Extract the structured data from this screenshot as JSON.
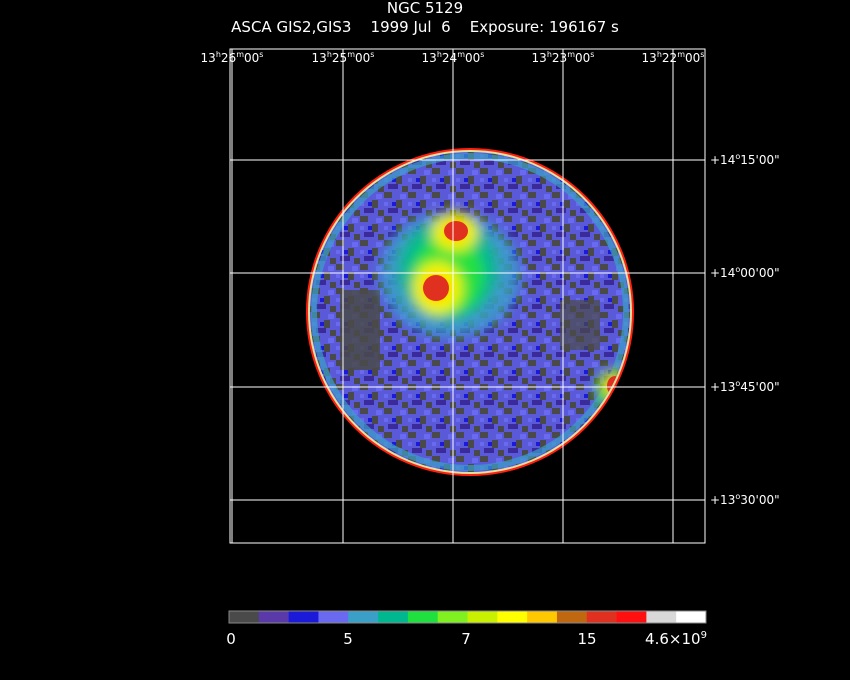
{
  "header": {
    "object_name": "NGC 5129",
    "subtitle": "ASCA GIS2,GIS3    1999 Jul  6    Exposure: 196167 s"
  },
  "ra_ticks": [
    {
      "h": "13",
      "m": "26",
      "s": "00"
    },
    {
      "h": "13",
      "m": "25",
      "s": "00"
    },
    {
      "h": "13",
      "m": "24",
      "s": "00"
    },
    {
      "h": "13",
      "m": "23",
      "s": "00"
    },
    {
      "h": "13",
      "m": "22",
      "s": "00"
    }
  ],
  "dec_ticks": [
    {
      "sign": "+",
      "deg": "14",
      "min": "15",
      "sec": "00"
    },
    {
      "sign": "+",
      "deg": "14",
      "min": "00",
      "sec": "00"
    },
    {
      "sign": "+",
      "deg": "13",
      "min": "45",
      "sec": "00"
    },
    {
      "sign": "+",
      "deg": "13",
      "min": "30",
      "sec": "00"
    }
  ],
  "colorbar": {
    "colors": [
      "#4a4a4a",
      "#5a3aa8",
      "#1a1ad8",
      "#6a6af0",
      "#3aa0c8",
      "#00b890",
      "#20e040",
      "#80f020",
      "#c8f000",
      "#ffff00",
      "#ffc800",
      "#c06810",
      "#e03020",
      "#ff1010",
      "#d8d8d8",
      "#ffffff"
    ],
    "labels": [
      {
        "text": "0",
        "base": "0",
        "exp": ""
      },
      {
        "text": "5",
        "base": "5",
        "exp": ""
      },
      {
        "text": "7",
        "base": "7",
        "exp": ""
      },
      {
        "text": "15",
        "base": "15",
        "exp": ""
      },
      {
        "text": "4.6×10",
        "base": "4.6×10",
        "exp": "9"
      }
    ]
  }
}
